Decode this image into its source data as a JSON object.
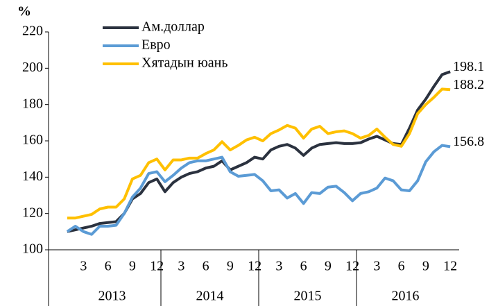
{
  "chart_data": {
    "type": "line",
    "y_unit": "%",
    "categories": [
      null,
      null,
      3,
      null,
      null,
      6,
      null,
      null,
      9,
      null,
      null,
      12,
      null,
      null,
      3,
      null,
      null,
      6,
      null,
      null,
      9,
      null,
      null,
      12,
      null,
      null,
      3,
      null,
      null,
      6,
      null,
      null,
      9,
      null,
      null,
      12,
      null,
      null,
      3,
      null,
      null,
      6,
      null,
      null,
      9,
      null,
      null,
      12
    ],
    "years": [
      "2013",
      "2014",
      "2015",
      "2016"
    ],
    "ylim": [
      100,
      220
    ],
    "yticks": [
      100,
      120,
      140,
      160,
      180,
      200,
      220
    ],
    "series": [
      {
        "name": "Ам.доллар",
        "color": "#2b323f",
        "values": [
          110,
          111,
          112,
          113,
          114.5,
          115,
          115.5,
          120,
          128,
          131,
          137,
          139,
          132,
          137,
          140,
          142,
          143,
          145,
          146,
          149,
          144,
          146,
          148,
          151,
          150,
          155,
          157,
          158,
          156,
          152,
          156,
          158,
          158.5,
          159,
          158.5,
          158.5,
          159,
          161,
          162.5,
          160.5,
          158.5,
          158,
          167,
          177,
          183,
          190,
          196.5,
          198.1
        ]
      },
      {
        "name": "Евро",
        "color": "#5b9bd5",
        "values": [
          110,
          113,
          110,
          108.5,
          113,
          113,
          113.5,
          120,
          129,
          134,
          142,
          143,
          137.5,
          141,
          145,
          148,
          149,
          149,
          150,
          151,
          143,
          140.5,
          141,
          141.5,
          138,
          132.5,
          133,
          128.5,
          131,
          125.5,
          131.5,
          131,
          134.5,
          135,
          131.5,
          127,
          131,
          132,
          134,
          139.5,
          138,
          133,
          132.5,
          138,
          148.5,
          154,
          157.5,
          156.8
        ]
      },
      {
        "name": "Хятадын юань",
        "color": "#ffc000",
        "values": [
          117.5,
          117.5,
          118.5,
          119.5,
          122.5,
          123.5,
          123.5,
          128,
          139,
          141,
          148,
          150,
          144,
          149.5,
          149.5,
          150.5,
          150.5,
          153,
          155,
          159.5,
          155,
          157.5,
          160.5,
          162,
          160,
          164,
          166,
          168.5,
          167,
          161.5,
          166.5,
          168,
          164,
          165,
          165.5,
          164,
          161.5,
          163,
          166.5,
          162,
          158,
          157,
          164,
          175,
          180,
          184,
          188.5,
          188.2
        ]
      }
    ]
  }
}
